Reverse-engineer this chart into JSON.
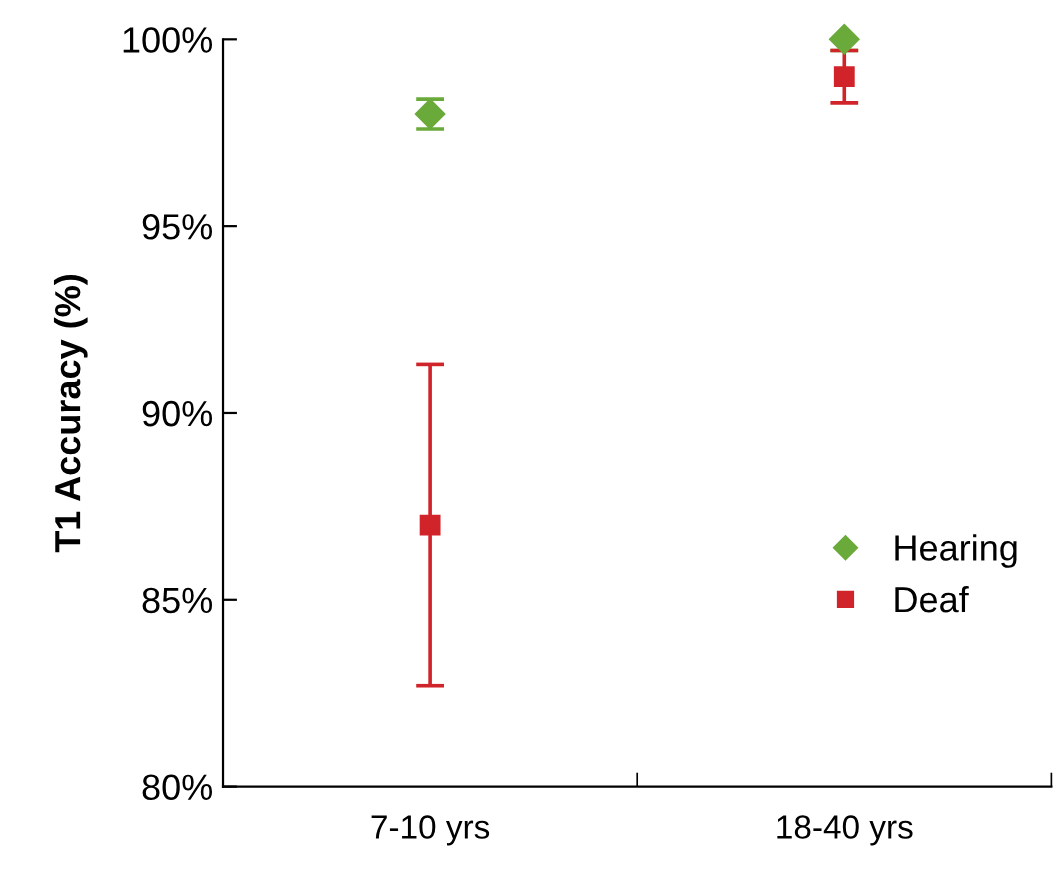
{
  "chart_data": {
    "type": "scatter",
    "ylabel": "T1 Accuracy (%)",
    "categories": [
      "7-10 yrs",
      "18-40 yrs"
    ],
    "series": [
      {
        "name": "Hearing",
        "color": "#6aaa3a",
        "marker": "diamond",
        "values": [
          98.0,
          100.0
        ],
        "errors": [
          0.4,
          0.3
        ]
      },
      {
        "name": "Deaf",
        "color": "#d0242a",
        "marker": "square",
        "values": [
          87.0,
          99.0
        ],
        "errors": [
          4.3,
          0.7
        ]
      }
    ],
    "ylim": [
      80,
      100
    ],
    "yticks": [
      {
        "value": 80,
        "label": "80%"
      },
      {
        "value": 85,
        "label": "85%"
      },
      {
        "value": 90,
        "label": "90%"
      },
      {
        "value": 95,
        "label": "95%"
      },
      {
        "value": 100,
        "label": "100%"
      }
    ],
    "grid": false,
    "legend": "bottom right"
  }
}
